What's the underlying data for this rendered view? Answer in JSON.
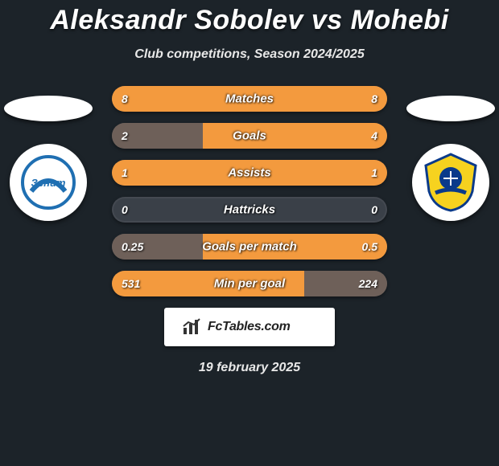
{
  "title": "Aleksandr Sobolev vs Mohebi",
  "subtitle": "Club competitions, Season 2024/2025",
  "date": "19 february 2025",
  "brand": {
    "text": "FcTables.com"
  },
  "players": {
    "left": {
      "ellipse_color": "#ffffff",
      "badge_bg": "#ffffff"
    },
    "right": {
      "ellipse_color": "#ffffff",
      "badge_bg": "#ffffff"
    }
  },
  "colors": {
    "background": "#1c2329",
    "row_track": "#3a4048",
    "row_accent": "#f39a3e",
    "row_muted": "#6e6059"
  },
  "stats": [
    {
      "label": "Matches",
      "left_text": "8",
      "right_text": "8",
      "left_pct": 50,
      "right_pct": 50,
      "left_color": "#f39a3e",
      "right_color": "#f39a3e"
    },
    {
      "label": "Goals",
      "left_text": "2",
      "right_text": "4",
      "left_pct": 33,
      "right_pct": 67,
      "left_color": "#6e6059",
      "right_color": "#f39a3e"
    },
    {
      "label": "Assists",
      "left_text": "1",
      "right_text": "1",
      "left_pct": 50,
      "right_pct": 50,
      "left_color": "#f39a3e",
      "right_color": "#f39a3e"
    },
    {
      "label": "Hattricks",
      "left_text": "0",
      "right_text": "0",
      "left_pct": 0,
      "right_pct": 0,
      "left_color": "transparent",
      "right_color": "transparent"
    },
    {
      "label": "Goals per match",
      "left_text": "0.25",
      "right_text": "0.5",
      "left_pct": 33,
      "right_pct": 67,
      "left_color": "#6e6059",
      "right_color": "#f39a3e"
    },
    {
      "label": "Min per goal",
      "left_text": "531",
      "right_text": "224",
      "left_pct": 70,
      "right_pct": 30,
      "left_color": "#f39a3e",
      "right_color": "#6e6059"
    }
  ]
}
